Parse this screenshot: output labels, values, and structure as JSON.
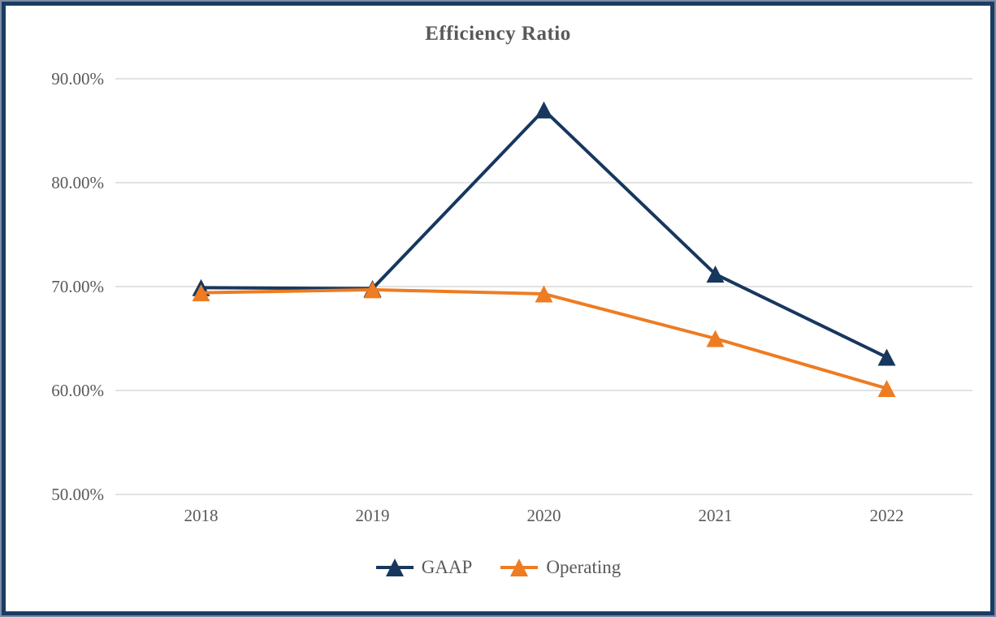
{
  "chart_data": {
    "type": "line",
    "title": "Efficiency Ratio",
    "categories": [
      "2018",
      "2019",
      "2020",
      "2021",
      "2022"
    ],
    "series": [
      {
        "name": "GAAP",
        "color": "#17375E",
        "values": [
          69.9,
          69.8,
          87.0,
          71.2,
          63.2
        ]
      },
      {
        "name": "Operating",
        "color": "#EE7C22",
        "values": [
          69.4,
          69.7,
          69.3,
          65.0,
          60.2
        ]
      }
    ],
    "y_axis": {
      "min": 50,
      "max": 90,
      "step": 10,
      "tick_labels": [
        "90.00%",
        "80.00%",
        "70.00%",
        "60.00%",
        "50.00%"
      ],
      "unit": "%"
    },
    "grid": true,
    "gridline_color": "#D9D9D9",
    "text_color": "#595959",
    "marker": "triangle-up",
    "legend_position": "bottom",
    "frame_border_inner": "#1b3c63",
    "frame_border_outer": "#7b8da4",
    "background": "#ffffff"
  }
}
